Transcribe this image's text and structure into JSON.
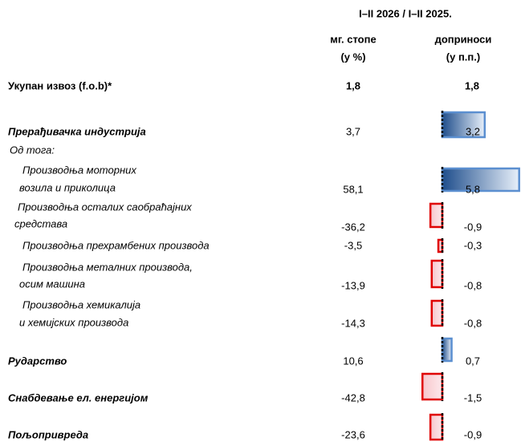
{
  "header": {
    "period": "I–II 2026 / I–II 2025.",
    "col1": [
      "мг. стопе",
      "(у %)"
    ],
    "col2": [
      "доприноси",
      "(у п.п.)"
    ]
  },
  "table": {
    "rows": [
      {
        "label": [
          "Укупан извоз (f.o.b)*"
        ],
        "growth": "1,8",
        "contribution": "1,8"
      },
      {
        "label": [
          "Прерађивачка индустрија"
        ],
        "growth": "3,7",
        "contribution": {
          "value": 3.2,
          "label": "3,2"
        }
      },
      {
        "label": [
          "Од тога:"
        ]
      },
      {
        "label": [
          "Производња моторних",
          "возила и приколица"
        ],
        "growth": "58,1",
        "contribution": {
          "value": 5.8,
          "label": "5,8"
        }
      },
      {
        "label": [
          "Производња осталих саобраћајних",
          "средстава"
        ],
        "growth": "-36,2",
        "contribution": {
          "value": -0.9,
          "label": "-0,9"
        }
      },
      {
        "label": [
          "Производња прехрамбених производа"
        ],
        "growth": "-3,5",
        "contribution": {
          "value": -0.3,
          "label": "-0,3"
        }
      },
      {
        "label": [
          "Производња металних производа,",
          "осим машина"
        ],
        "growth": "-13,9",
        "contribution": {
          "value": -0.8,
          "label": "-0,8"
        }
      },
      {
        "label": [
          "Производња хемикалија",
          "и хемијских производа"
        ],
        "growth": "-14,3",
        "contribution": {
          "value": -0.8,
          "label": "-0,8"
        }
      },
      {
        "label": [
          "Рударство"
        ],
        "growth": "10,6",
        "contribution": {
          "value": 0.7,
          "label": "0,7"
        }
      },
      {
        "label": [
          "Снабдевање ел. енергијом"
        ],
        "growth": "-42,8",
        "contribution": {
          "value": -1.5,
          "label": "-1,5"
        }
      },
      {
        "label": [
          "Пољопривреда"
        ],
        "growth": "-23,6",
        "contribution": {
          "value": -0.9,
          "label": "-0,9"
        }
      }
    ]
  }
}
